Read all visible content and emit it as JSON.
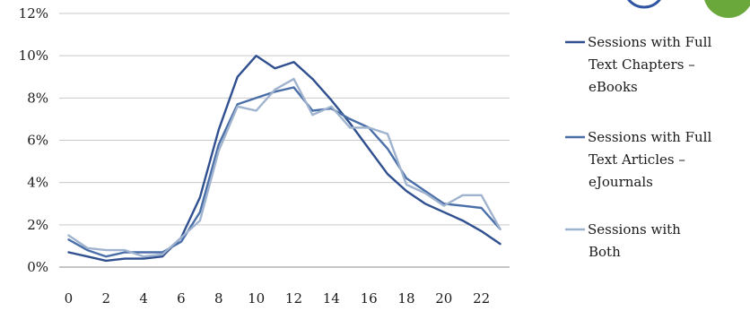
{
  "chart_data": {
    "type": "line",
    "x": [
      0,
      1,
      2,
      3,
      4,
      5,
      6,
      7,
      8,
      9,
      10,
      11,
      12,
      13,
      14,
      15,
      16,
      17,
      18,
      19,
      20,
      21,
      22,
      23
    ],
    "x_tick_labels": [
      "0",
      "2",
      "4",
      "6",
      "8",
      "10",
      "12",
      "14",
      "16",
      "18",
      "20",
      "22"
    ],
    "y_tick_labels": [
      "0%",
      "2%",
      "4%",
      "6%",
      "8%",
      "10%",
      "12%"
    ],
    "ylim": [
      0,
      12
    ],
    "xlim": [
      -0.5,
      23.5
    ],
    "grid": true,
    "legend_position": "right",
    "series": [
      {
        "name": "Sessions with Full Text Chapters – eBooks",
        "label_lines": [
          "Sessions with Full",
          "Text Chapters –",
          "eBooks"
        ],
        "color": "#2f4f8f",
        "values": [
          0.7,
          0.5,
          0.3,
          0.4,
          0.4,
          0.5,
          1.4,
          3.3,
          6.5,
          9.0,
          10.0,
          9.4,
          9.7,
          8.9,
          7.9,
          6.8,
          5.6,
          4.4,
          3.6,
          3.0,
          2.6,
          2.2,
          1.7,
          1.1
        ]
      },
      {
        "name": "Sessions with Full Text Articles – eJournals",
        "label_lines": [
          "Sessions with Full",
          "Text Articles –",
          "eJournals"
        ],
        "color": "#4a6fa8",
        "values": [
          1.3,
          0.8,
          0.5,
          0.7,
          0.7,
          0.7,
          1.2,
          2.6,
          5.8,
          7.7,
          8.0,
          8.3,
          8.5,
          7.4,
          7.5,
          7.0,
          6.6,
          5.6,
          4.2,
          3.6,
          3.0,
          2.9,
          2.8,
          1.8
        ]
      },
      {
        "name": "Sessions with Both",
        "label_lines": [
          "Sessions with",
          "Both"
        ],
        "color": "#9fb3cf",
        "values": [
          1.5,
          0.9,
          0.8,
          0.8,
          0.5,
          0.6,
          1.4,
          2.2,
          5.5,
          7.6,
          7.4,
          8.4,
          8.9,
          7.2,
          7.6,
          6.6,
          6.6,
          6.3,
          3.9,
          3.5,
          2.9,
          3.4,
          3.4,
          1.8
        ]
      }
    ]
  },
  "decor": {
    "circle_colors": [
      "#2f55a4",
      "#6aa83c"
    ]
  }
}
